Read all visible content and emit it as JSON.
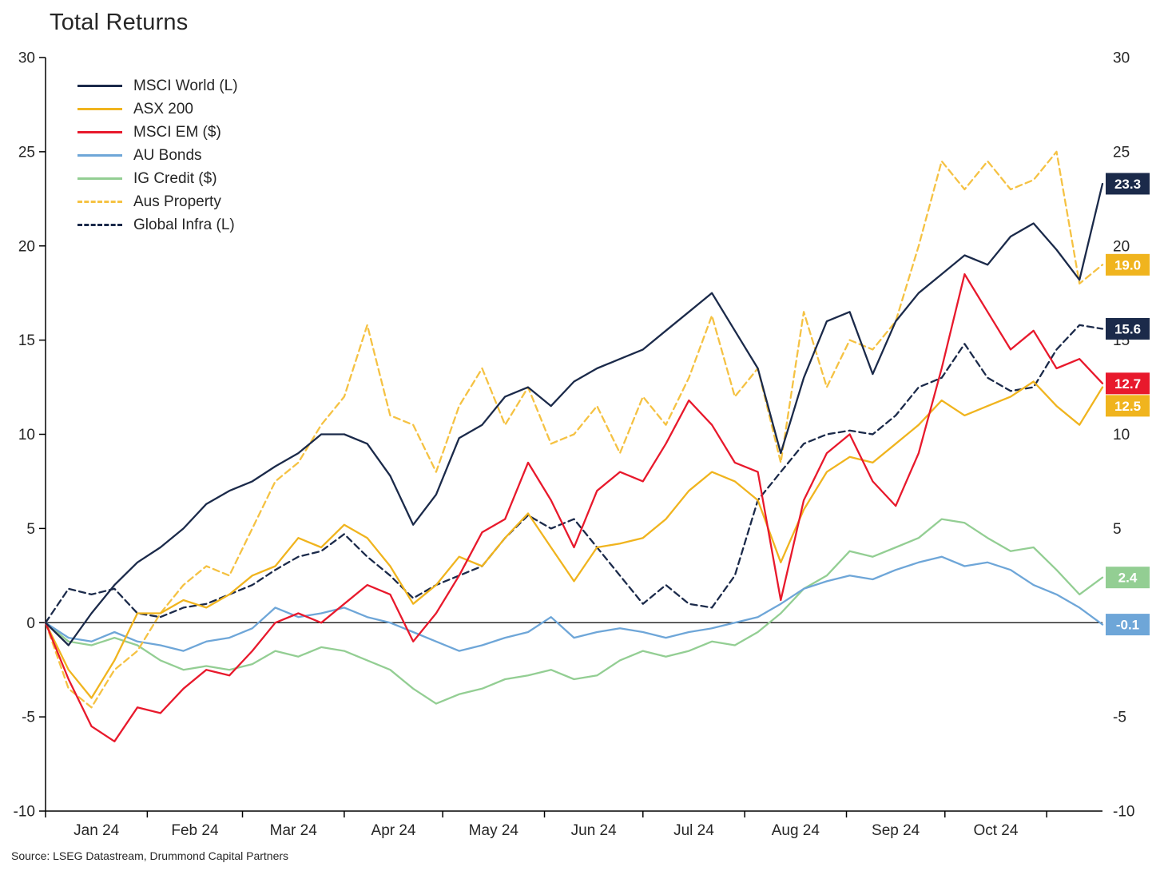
{
  "title": "Total Returns",
  "source": "Source: LSEG Datastream, Drummond Capital Partners",
  "chart_data": {
    "type": "line",
    "title": "Total Returns",
    "ylabel_left": "",
    "ylabel_right": "",
    "ylim": [
      -10,
      30
    ],
    "y_ticks": [
      30,
      25,
      20,
      15,
      10,
      5,
      0,
      -5,
      -10
    ],
    "x_tick_labels": [
      "Jan 24",
      "Feb 24",
      "Mar 24",
      "Apr 24",
      "May 24",
      "Jun 24",
      "Jul 24",
      "Aug 24",
      "Sep 24",
      "Oct 24"
    ],
    "month_boundaries_days": [
      0,
      31,
      60,
      91,
      121,
      152,
      182,
      213,
      244,
      274,
      305
    ],
    "total_days": 322,
    "point_interval_days": 7,
    "grid": false,
    "zero_line": true,
    "legend_position": "top-left inside plot",
    "series": [
      {
        "name": "MSCI World (L)",
        "color": "#1b2a4a",
        "badge_color": "#1b2a4a",
        "dash": "solid",
        "end_value": 23.3,
        "end_label": "23.3",
        "values": [
          0,
          -1.2,
          0.5,
          2.0,
          3.2,
          4.0,
          5.0,
          6.3,
          7.0,
          7.5,
          8.3,
          9.0,
          10.0,
          10.0,
          9.5,
          7.8,
          5.2,
          6.8,
          9.8,
          10.5,
          12.0,
          12.5,
          11.5,
          12.8,
          13.5,
          14.0,
          14.5,
          15.5,
          16.5,
          17.5,
          15.5,
          13.5,
          9.0,
          13.0,
          16.0,
          16.5,
          13.2,
          16.0,
          17.5,
          18.5,
          19.5,
          19.0,
          20.5,
          21.2,
          19.8,
          18.2,
          23.3
        ]
      },
      {
        "name": "ASX 200",
        "color": "#f0b41e",
        "badge_color": "#f0b41e",
        "dash": "solid",
        "end_value": 12.5,
        "end_label": "12.5",
        "values": [
          0,
          -2.5,
          -4.0,
          -2.0,
          0.5,
          0.5,
          1.2,
          0.8,
          1.5,
          2.5,
          3.0,
          4.5,
          4.0,
          5.2,
          4.5,
          3.0,
          1.0,
          2.0,
          3.5,
          3.0,
          4.5,
          5.8,
          4.0,
          2.2,
          4.0,
          4.2,
          4.5,
          5.5,
          7.0,
          8.0,
          7.5,
          6.5,
          3.2,
          6.0,
          8.0,
          8.8,
          8.5,
          9.5,
          10.5,
          11.8,
          11.0,
          11.5,
          12.0,
          12.8,
          11.5,
          10.5,
          12.5
        ]
      },
      {
        "name": "MSCI EM ($)",
        "color": "#e8192c",
        "badge_color": "#e8192c",
        "dash": "solid",
        "end_value": 12.7,
        "end_label": "12.7",
        "values": [
          0,
          -3.0,
          -5.5,
          -6.3,
          -4.5,
          -4.8,
          -3.5,
          -2.5,
          -2.8,
          -1.5,
          0.0,
          0.5,
          0.0,
          1.0,
          2.0,
          1.5,
          -1.0,
          0.5,
          2.5,
          4.8,
          5.5,
          8.5,
          6.5,
          4.0,
          7.0,
          8.0,
          7.5,
          9.5,
          11.8,
          10.5,
          8.5,
          8.0,
          1.2,
          6.5,
          9.0,
          10.0,
          7.5,
          6.2,
          9.0,
          13.5,
          18.5,
          16.5,
          14.5,
          15.5,
          13.5,
          14.0,
          12.7
        ]
      },
      {
        "name": "AU Bonds",
        "color": "#6ea6d8",
        "badge_color": "#6ea6d8",
        "dash": "solid",
        "end_value": -0.1,
        "end_label": "-0.1",
        "values": [
          0,
          -0.8,
          -1.0,
          -0.5,
          -1.0,
          -1.2,
          -1.5,
          -1.0,
          -0.8,
          -0.3,
          0.8,
          0.3,
          0.5,
          0.8,
          0.3,
          0.0,
          -0.5,
          -1.0,
          -1.5,
          -1.2,
          -0.8,
          -0.5,
          0.3,
          -0.8,
          -0.5,
          -0.3,
          -0.5,
          -0.8,
          -0.5,
          -0.3,
          0.0,
          0.3,
          1.0,
          1.8,
          2.2,
          2.5,
          2.3,
          2.8,
          3.2,
          3.5,
          3.0,
          3.2,
          2.8,
          2.0,
          1.5,
          0.8,
          -0.1
        ]
      },
      {
        "name": "IG Credit ($)",
        "color": "#93ce93",
        "badge_color": "#93ce93",
        "dash": "solid",
        "end_value": 2.4,
        "end_label": "2.4",
        "values": [
          0,
          -1.0,
          -1.2,
          -0.8,
          -1.2,
          -2.0,
          -2.5,
          -2.3,
          -2.5,
          -2.2,
          -1.5,
          -1.8,
          -1.3,
          -1.5,
          -2.0,
          -2.5,
          -3.5,
          -4.3,
          -3.8,
          -3.5,
          -3.0,
          -2.8,
          -2.5,
          -3.0,
          -2.8,
          -2.0,
          -1.5,
          -1.8,
          -1.5,
          -1.0,
          -1.2,
          -0.5,
          0.5,
          1.8,
          2.5,
          3.8,
          3.5,
          4.0,
          4.5,
          5.5,
          5.3,
          4.5,
          3.8,
          4.0,
          2.8,
          1.5,
          2.4
        ]
      },
      {
        "name": "Aus Property",
        "color": "#f5c243",
        "badge_color": "#f0b41e",
        "dash": "dashed",
        "end_value": 19.0,
        "end_label": "19.0",
        "values": [
          0,
          -3.5,
          -4.5,
          -2.5,
          -1.5,
          0.5,
          2.0,
          3.0,
          2.5,
          5.0,
          7.5,
          8.5,
          10.5,
          12.0,
          15.8,
          11.0,
          10.5,
          8.0,
          11.5,
          13.5,
          10.5,
          12.5,
          9.5,
          10.0,
          11.5,
          9.0,
          12.0,
          10.5,
          13.0,
          16.3,
          12.0,
          13.5,
          8.5,
          16.5,
          12.5,
          15.0,
          14.5,
          16.0,
          20.0,
          24.5,
          23.0,
          24.5,
          23.0,
          23.5,
          25.0,
          18.0,
          19.0
        ]
      },
      {
        "name": "Global Infra (L)",
        "color": "#1b2a4a",
        "badge_color": "#1b2a4a",
        "dash": "dashed",
        "end_value": 15.6,
        "end_label": "15.6",
        "values": [
          0,
          1.8,
          1.5,
          1.8,
          0.5,
          0.3,
          0.8,
          1.0,
          1.5,
          2.0,
          2.8,
          3.5,
          3.8,
          4.7,
          3.5,
          2.5,
          1.3,
          2.0,
          2.5,
          3.0,
          4.5,
          5.7,
          5.0,
          5.5,
          4.0,
          2.5,
          1.0,
          2.0,
          1.0,
          0.8,
          2.5,
          6.5,
          8.0,
          9.5,
          10.0,
          10.2,
          10.0,
          11.0,
          12.5,
          13.0,
          14.8,
          13.0,
          12.3,
          12.5,
          14.5,
          15.8,
          15.6
        ]
      }
    ]
  }
}
